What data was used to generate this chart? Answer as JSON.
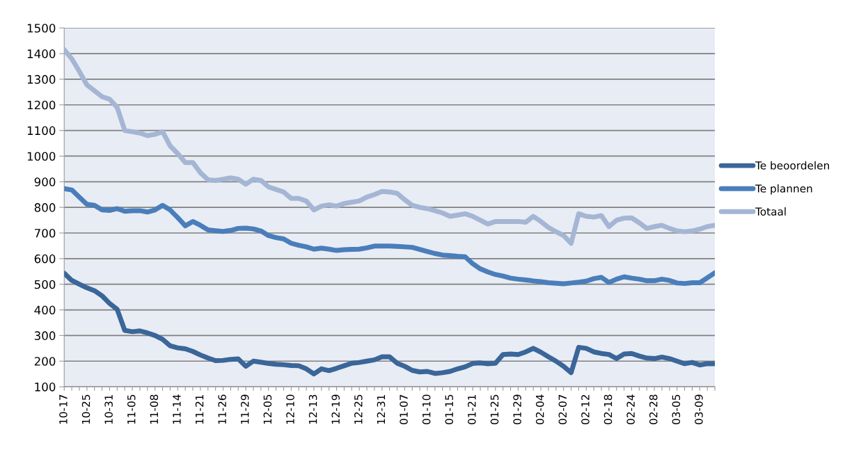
{
  "chart_data": {
    "type": "line",
    "categories": [
      "10-17",
      null,
      null,
      "10-25",
      null,
      null,
      "10-31",
      null,
      null,
      "11-05",
      null,
      null,
      "11-08",
      null,
      null,
      "11-14",
      null,
      null,
      "11-21",
      null,
      null,
      "11-26",
      null,
      null,
      "11-29",
      null,
      null,
      "12-05",
      null,
      null,
      "12-10",
      null,
      null,
      "12-13",
      null,
      null,
      "12-19",
      null,
      null,
      "12-25",
      null,
      null,
      "12-31",
      null,
      null,
      "01-07",
      null,
      null,
      "01-10",
      null,
      null,
      "01-15",
      null,
      null,
      "01-21",
      null,
      null,
      "01-25",
      null,
      null,
      "01-29",
      null,
      null,
      "02-04",
      null,
      null,
      "02-07",
      null,
      null,
      "02-12",
      null,
      null,
      "02-18",
      null,
      null,
      "02-24",
      null,
      null,
      "02-28",
      null,
      null,
      "03-05",
      null,
      null,
      "03-09",
      null,
      null
    ],
    "series": [
      {
        "name": "Te beoordelen",
        "color": "#3a6699",
        "values": [
          543,
          515,
          500,
          486,
          475,
          455,
          425,
          402,
          320,
          315,
          318,
          310,
          300,
          285,
          260,
          252,
          248,
          238,
          224,
          212,
          202,
          203,
          207,
          209,
          180,
          200,
          196,
          191,
          188,
          186,
          183,
          182,
          170,
          150,
          170,
          163,
          172,
          182,
          192,
          195,
          200,
          205,
          217,
          217,
          192,
          180,
          164,
          158,
          160,
          152,
          155,
          160,
          170,
          178,
          191,
          193,
          190,
          192,
          226,
          228,
          226,
          236,
          250,
          235,
          217,
          200,
          180,
          155,
          254,
          250,
          236,
          230,
          226,
          210,
          228,
          230,
          220,
          212,
          210,
          216,
          210,
          200,
          190,
          195,
          185,
          190,
          190
        ]
      },
      {
        "name": "Te plannen",
        "color": "#4a7ebb",
        "values": [
          873,
          868,
          840,
          812,
          808,
          790,
          788,
          795,
          785,
          787,
          787,
          782,
          790,
          808,
          790,
          760,
          728,
          745,
          730,
          712,
          709,
          706,
          710,
          718,
          719,
          716,
          708,
          690,
          682,
          677,
          660,
          652,
          646,
          637,
          641,
          637,
          632,
          635,
          636,
          637,
          642,
          649,
          649,
          649,
          648,
          646,
          644,
          636,
          628,
          620,
          614,
          612,
          609,
          607,
          580,
          560,
          548,
          538,
          532,
          524,
          520,
          517,
          513,
          510,
          506,
          504,
          502,
          505,
          508,
          512,
          522,
          527,
          507,
          520,
          529,
          524,
          520,
          514,
          514,
          520,
          515,
          505,
          503,
          506,
          506,
          525,
          545
        ]
      },
      {
        "name": "Totaal",
        "color": "#a5b6d4",
        "values": [
          1415,
          1380,
          1330,
          1278,
          1255,
          1232,
          1222,
          1190,
          1100,
          1095,
          1090,
          1080,
          1085,
          1095,
          1040,
          1010,
          975,
          975,
          935,
          908,
          905,
          910,
          915,
          910,
          890,
          910,
          905,
          880,
          870,
          860,
          835,
          835,
          825,
          790,
          805,
          810,
          805,
          815,
          820,
          825,
          840,
          850,
          862,
          860,
          855,
          830,
          808,
          800,
          795,
          787,
          778,
          765,
          770,
          775,
          765,
          750,
          735,
          745,
          745,
          745,
          745,
          742,
          765,
          745,
          722,
          705,
          690,
          660,
          775,
          765,
          762,
          768,
          725,
          750,
          758,
          759,
          740,
          718,
          725,
          730,
          718,
          708,
          705,
          708,
          715,
          725,
          730
        ]
      }
    ],
    "ylim": [
      100,
      1500
    ],
    "yticks": [
      100,
      200,
      300,
      400,
      500,
      600,
      700,
      800,
      900,
      1000,
      1100,
      1200,
      1300,
      1400,
      1500
    ],
    "grid": "y",
    "legend": "right",
    "marker": "none",
    "line_style": "solid"
  }
}
